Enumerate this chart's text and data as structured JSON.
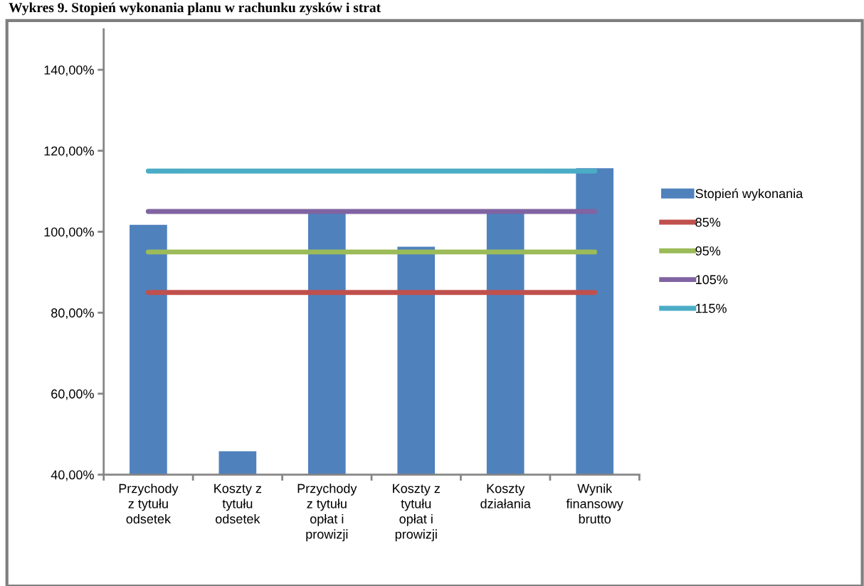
{
  "chart_data": {
    "type": "bar",
    "title": "Wykres 9. Stopień wykonania planu w rachunku zysków i strat",
    "categories": [
      "Przychody\nz tytułu\nodsetek",
      "Koszty z\ntytułu\nodsetek",
      "Przychody\nz tytułu\nopłat i\nprowizji",
      "Koszty z\ntytułu\nopłat i\nprowizji",
      "Koszty\ndziałania",
      "Wynik\nfinansowy\nbrutto"
    ],
    "series": [
      {
        "name": "Stopień wykonania",
        "color": "#4f81bd",
        "values": [
          101.7,
          45.8,
          104.6,
          96.3,
          104.6,
          115.7
        ]
      },
      {
        "name": "85%",
        "type": "line",
        "color": "#c0504d",
        "values": [
          85,
          85,
          85,
          85,
          85,
          85
        ]
      },
      {
        "name": "95%",
        "type": "line",
        "color": "#9bbb59",
        "values": [
          95,
          95,
          95,
          95,
          95,
          95
        ]
      },
      {
        "name": "105%",
        "type": "line",
        "color": "#8064a2",
        "values": [
          105,
          105,
          105,
          105,
          105,
          105
        ]
      },
      {
        "name": "115%",
        "type": "line",
        "color": "#4bacc6",
        "values": [
          115,
          115,
          115,
          115,
          115,
          115
        ]
      }
    ],
    "ylim": [
      40,
      150
    ],
    "yticks": [
      {
        "value": 40,
        "label": "40,00%"
      },
      {
        "value": 60,
        "label": "60,00%"
      },
      {
        "value": 80,
        "label": "80,00%"
      },
      {
        "value": 100,
        "label": "100,00%"
      },
      {
        "value": 120,
        "label": "120,00%"
      },
      {
        "value": 140,
        "label": "140,00%"
      }
    ],
    "grid": false,
    "legend": "right",
    "marker": "none",
    "line_style": "solid"
  }
}
